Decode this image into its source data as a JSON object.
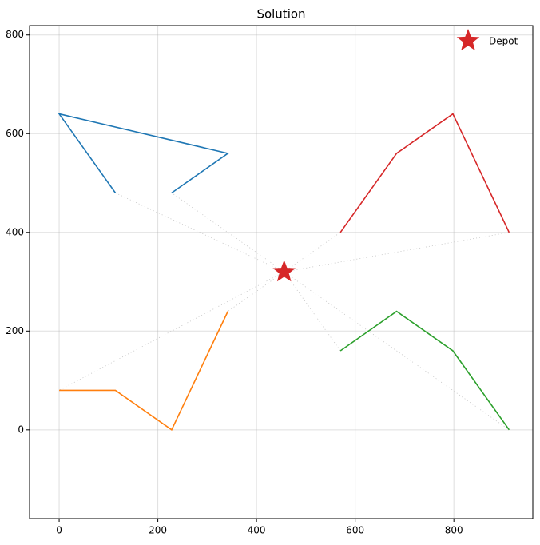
{
  "chart_data": {
    "type": "line",
    "title": "Solution",
    "xlim": [
      -60,
      960
    ],
    "ylim": [
      -180,
      819
    ],
    "xticks": [
      0,
      200,
      400,
      600,
      800
    ],
    "yticks": [
      0,
      200,
      400,
      600,
      800
    ],
    "grid": true,
    "legend": "upper right",
    "depot": {
      "name": "Depot",
      "x": 456,
      "y": 320,
      "color": "#d62728"
    },
    "series": [
      {
        "color": "#1f77b4",
        "x": [
          114,
          0,
          342,
          228
        ],
        "values": [
          480,
          640,
          560,
          480
        ]
      },
      {
        "color": "#ff7f0e",
        "x": [
          0,
          114,
          228,
          342
        ],
        "values": [
          80,
          80,
          0,
          240
        ]
      },
      {
        "color": "#d62728",
        "x": [
          570,
          684,
          798,
          912
        ],
        "values": [
          400,
          560,
          640,
          400
        ]
      },
      {
        "color": "#2ca02c",
        "x": [
          570,
          684,
          798,
          912
        ],
        "values": [
          160,
          240,
          160,
          0
        ]
      }
    ]
  }
}
